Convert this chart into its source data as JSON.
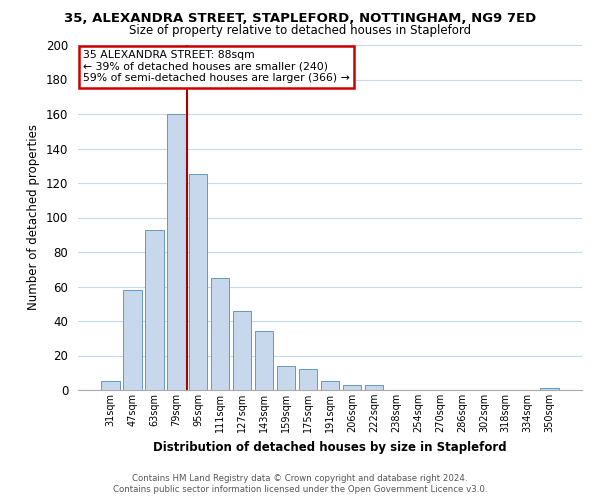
{
  "title1": "35, ALEXANDRA STREET, STAPLEFORD, NOTTINGHAM, NG9 7ED",
  "title2": "Size of property relative to detached houses in Stapleford",
  "xlabel": "Distribution of detached houses by size in Stapleford",
  "ylabel": "Number of detached properties",
  "bar_labels": [
    "31sqm",
    "47sqm",
    "63sqm",
    "79sqm",
    "95sqm",
    "111sqm",
    "127sqm",
    "143sqm",
    "159sqm",
    "175sqm",
    "191sqm",
    "206sqm",
    "222sqm",
    "238sqm",
    "254sqm",
    "270sqm",
    "286sqm",
    "302sqm",
    "318sqm",
    "334sqm",
    "350sqm"
  ],
  "bar_values": [
    5,
    58,
    93,
    160,
    125,
    65,
    46,
    34,
    14,
    12,
    5,
    3,
    3,
    0,
    0,
    0,
    0,
    0,
    0,
    0,
    1
  ],
  "bar_color": "#c8d8ec",
  "bar_edge_color": "#6699bb",
  "ylim": [
    0,
    200
  ],
  "yticks": [
    0,
    20,
    40,
    60,
    80,
    100,
    120,
    140,
    160,
    180,
    200
  ],
  "annotation_title": "35 ALEXANDRA STREET: 88sqm",
  "annotation_line1": "← 39% of detached houses are smaller (240)",
  "annotation_line2": "59% of semi-detached houses are larger (366) →",
  "annotation_box_color": "#ffffff",
  "annotation_box_edge": "#cc0000",
  "footer1": "Contains HM Land Registry data © Crown copyright and database right 2024.",
  "footer2": "Contains public sector information licensed under the Open Government Licence v3.0.",
  "bg_color": "#ffffff",
  "grid_color": "#c8d8ec",
  "vline_x": 3.5,
  "vline_color": "#aa0000"
}
